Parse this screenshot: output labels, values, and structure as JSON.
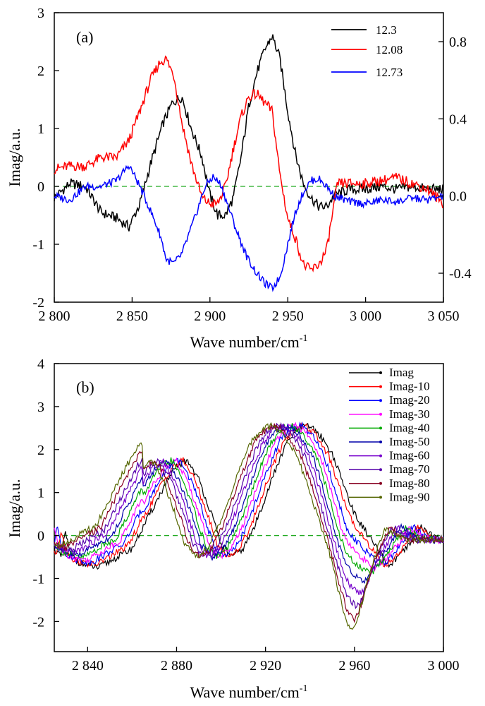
{
  "chart_data": [
    {
      "type": "line",
      "panel_label": "(a)",
      "xlabel": "Wave number/cm",
      "xlabel_sup": "-1",
      "ylabel": "Imag/a.u.",
      "xlim": [
        2800,
        3050
      ],
      "ylim": [
        -2,
        3
      ],
      "y2lim": [
        -0.55,
        0.95
      ],
      "x_ticks": [
        2800,
        2850,
        2900,
        2950,
        3000,
        3050
      ],
      "x_tick_labels": [
        "2 800",
        "2 850",
        "2 900",
        "2 950",
        "3 000",
        "3 050"
      ],
      "y_ticks": [
        -2,
        -1,
        0,
        1,
        2,
        3
      ],
      "y_tick_labels": [
        "-2",
        "-1",
        "0",
        "1",
        "2",
        "3"
      ],
      "y2_ticks": [
        -0.4,
        0.0,
        0.4,
        0.8
      ],
      "y2_tick_labels": [
        "-0.4",
        "0.0",
        "0.4",
        "0.8"
      ],
      "zero_line_color": "#22aa22",
      "legend_position": "top-right",
      "series": [
        {
          "name": "12.3",
          "color": "#000000",
          "axis": "left",
          "x": [
            2800,
            2810,
            2820,
            2830,
            2840,
            2848,
            2855,
            2862,
            2870,
            2876,
            2882,
            2888,
            2895,
            2900,
            2905,
            2910,
            2915,
            2920,
            2925,
            2930,
            2935,
            2940,
            2945,
            2950,
            2955,
            2960,
            2965,
            2970,
            2975,
            2980,
            2990,
            3000,
            3010,
            3020,
            3030,
            3040,
            3050
          ],
          "y": [
            -0.2,
            0.05,
            0.0,
            -0.45,
            -0.55,
            -0.7,
            -0.3,
            0.4,
            1.1,
            1.45,
            1.55,
            1.0,
            0.5,
            -0.15,
            -0.5,
            -0.5,
            -0.2,
            0.5,
            1.4,
            1.95,
            2.35,
            2.6,
            2.2,
            1.3,
            0.55,
            0.05,
            -0.2,
            -0.35,
            -0.35,
            -0.15,
            -0.05,
            -0.05,
            0.0,
            -0.05,
            0.0,
            -0.05,
            -0.05
          ]
        },
        {
          "name": "12.08",
          "color": "#ff0000",
          "axis": "left",
          "x": [
            2800,
            2810,
            2820,
            2830,
            2840,
            2848,
            2855,
            2862,
            2868,
            2872,
            2877,
            2882,
            2888,
            2895,
            2900,
            2905,
            2910,
            2915,
            2920,
            2925,
            2930,
            2935,
            2940,
            2945,
            2950,
            2955,
            2960,
            2965,
            2970,
            2975,
            2978,
            2982,
            2990,
            3000,
            3010,
            3020,
            3030,
            3040,
            3050
          ],
          "y": [
            0.3,
            0.35,
            0.35,
            0.5,
            0.5,
            0.8,
            1.3,
            1.85,
            2.15,
            2.2,
            1.9,
            1.1,
            0.4,
            -0.2,
            -0.3,
            -0.3,
            0.0,
            0.65,
            1.2,
            1.55,
            1.6,
            1.45,
            1.3,
            0.2,
            -0.55,
            -0.9,
            -1.35,
            -1.45,
            -1.35,
            -1.1,
            -0.6,
            0.05,
            0.05,
            0.05,
            0.1,
            0.15,
            0.05,
            -0.05,
            -0.3
          ]
        },
        {
          "name": "12.73",
          "color": "#0000ff",
          "axis": "right",
          "x": [
            2800,
            2810,
            2820,
            2830,
            2840,
            2848,
            2855,
            2862,
            2868,
            2872,
            2877,
            2882,
            2890,
            2897,
            2902,
            2907,
            2912,
            2918,
            2924,
            2930,
            2935,
            2940,
            2945,
            2950,
            2955,
            2960,
            2965,
            2970,
            2975,
            2980,
            2990,
            3000,
            3010,
            3020,
            3030,
            3040,
            3050
          ],
          "y": [
            0.0,
            -0.02,
            0.05,
            0.05,
            0.08,
            0.16,
            0.05,
            -0.08,
            -0.2,
            -0.33,
            -0.35,
            -0.3,
            -0.12,
            0.05,
            0.1,
            0.06,
            -0.06,
            -0.2,
            -0.32,
            -0.4,
            -0.45,
            -0.48,
            -0.42,
            -0.25,
            -0.08,
            0.02,
            0.08,
            0.09,
            0.05,
            0.0,
            -0.03,
            -0.04,
            -0.02,
            -0.03,
            -0.01,
            -0.02,
            0.0
          ]
        }
      ]
    },
    {
      "type": "line",
      "panel_label": "(b)",
      "xlabel": "Wave number/cm",
      "xlabel_sup": "-1",
      "ylabel": "Imag/a.u.",
      "xlim": [
        2825,
        3000
      ],
      "ylim": [
        -2.7,
        4
      ],
      "x_ticks": [
        2840,
        2880,
        2920,
        2960,
        3000
      ],
      "x_tick_labels": [
        "2 840",
        "2 880",
        "2 920",
        "2 960",
        "3 000"
      ],
      "y_ticks": [
        -2,
        -1,
        0,
        1,
        2,
        3,
        4
      ],
      "y_tick_labels": [
        "-2",
        "-1",
        "0",
        "1",
        "2",
        "3",
        "4"
      ],
      "zero_line_color": "#22aa22",
      "legend_position": "top-right",
      "series": [
        {
          "name": "Imag",
          "color": "#000000",
          "shift": 0.0
        },
        {
          "name": "Imag-10",
          "color": "#ff0000",
          "shift": 0.1
        },
        {
          "name": "Imag-20",
          "color": "#0000ff",
          "shift": 0.2
        },
        {
          "name": "Imag-30",
          "color": "#ff00ff",
          "shift": 0.3
        },
        {
          "name": "Imag-40",
          "color": "#00aa00",
          "shift": 0.4
        },
        {
          "name": "Imag-50",
          "color": "#0000aa",
          "shift": 0.5
        },
        {
          "name": "Imag-60",
          "color": "#7700cc",
          "shift": 0.6
        },
        {
          "name": "Imag-70",
          "color": "#5500aa",
          "shift": 0.7
        },
        {
          "name": "Imag-80",
          "color": "#880022",
          "shift": 0.8
        },
        {
          "name": "Imag-90",
          "color": "#556600",
          "shift": 0.9
        }
      ],
      "shape": {
        "x": [
          2825,
          2828,
          2830,
          2832,
          2835,
          2840,
          2845,
          2850,
          2855,
          2860,
          2865,
          2870,
          2875,
          2880,
          2885,
          2890,
          2895,
          2900,
          2905,
          2910,
          2915,
          2920,
          2925,
          2930,
          2935,
          2940,
          2945,
          2950,
          2955,
          2960,
          2965,
          2970,
          2975,
          2980,
          2985,
          2990,
          2995,
          3000
        ],
        "y": [
          -0.3,
          -0.5,
          0.1,
          -0.4,
          -0.6,
          -0.7,
          -0.75,
          -0.6,
          -0.45,
          -0.3,
          0.2,
          0.7,
          1.2,
          1.6,
          1.75,
          1.3,
          0.6,
          -0.2,
          -0.5,
          -0.3,
          0.2,
          0.9,
          1.6,
          2.2,
          2.5,
          2.55,
          2.3,
          1.9,
          1.2,
          0.5,
          0.1,
          -0.3,
          -0.7,
          -0.5,
          -0.2,
          0.2,
          0.0,
          -0.1
        ]
      },
      "dip_y": [
        0,
        -0.1,
        -0.3,
        -0.45,
        -0.6,
        -0.75,
        -0.95,
        -1.15,
        -1.35,
        -1.5
      ]
    }
  ]
}
